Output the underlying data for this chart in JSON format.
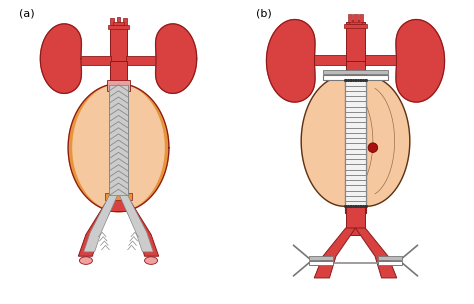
{
  "panel_a_label": "(a)",
  "panel_b_label": "(b)",
  "colors": {
    "art_red": "#D94040",
    "art_dark": "#8B1A1A",
    "art_outline": "#6B1010",
    "kidney_red": "#D94040",
    "aneu_fill": "#F5C8A0",
    "aneu_orange": "#E8943A",
    "aneu_outline": "#8B4513",
    "stent_fill": "#CCCCCC",
    "stent_line": "#888888",
    "graft_white": "#F2F2F2",
    "graft_line": "#888888",
    "iliac_pink": "#F4A0A0",
    "iliac_pink_dark": "#8B3333",
    "bg": "#FFFFFF",
    "red_dot": "#AA1111",
    "clamp_gray": "#BBBBBB",
    "clamp_dark": "#777777",
    "dark_brown": "#5C3317"
  }
}
